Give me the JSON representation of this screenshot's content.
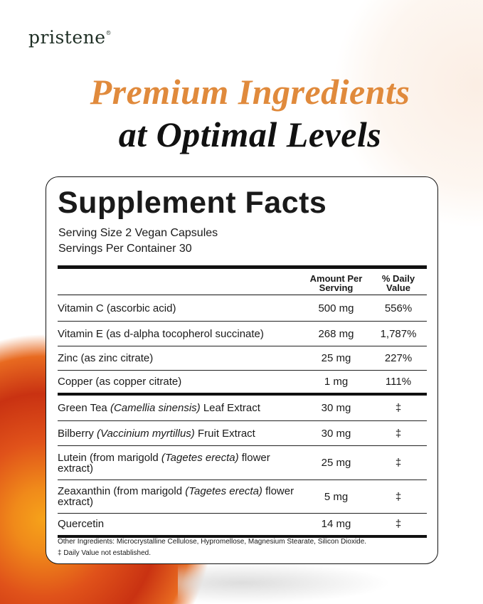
{
  "brand": {
    "name": "pristene",
    "mark": "®"
  },
  "headline": {
    "line1": "Premium Ingredients",
    "line2": "at Optimal Levels",
    "accent_color": "#e08a3c"
  },
  "facts": {
    "title": "Supplement Facts",
    "serving_size": "Serving Size 2 Vegan Capsules",
    "servings_per_container": "Servings Per Container 30",
    "col_amount": "Amount Per Serving",
    "col_dv": "% Daily Value",
    "rows": [
      {
        "name": "Vitamin C (ascorbic acid)",
        "amount": "500 mg",
        "dv": "556%"
      },
      {
        "name": "Vitamin E (as d-alpha tocopherol succinate)",
        "amount": "268 mg",
        "dv": "1,787%"
      },
      {
        "name": "Zinc (as zinc citrate)",
        "amount": "25 mg",
        "dv": "227%"
      },
      {
        "name": "Copper (as copper citrate)",
        "amount": "1 mg",
        "dv": "111%"
      },
      {
        "name_pre": "Green Tea ",
        "name_it": "(Camellia sinensis)",
        "name_post": " Leaf Extract",
        "amount": "30 mg",
        "dv": "‡"
      },
      {
        "name_pre": "Bilberry ",
        "name_it": "(Vaccinium myrtillus)",
        "name_post": " Fruit Extract",
        "amount": "30 mg",
        "dv": "‡"
      },
      {
        "name_pre": "Lutein (from marigold ",
        "name_it": "(Tagetes erecta)",
        "name_post": " flower extract)",
        "amount": "25 mg",
        "dv": "‡"
      },
      {
        "name_pre": "Zeaxanthin (from marigold ",
        "name_it": "(Tagetes erecta)",
        "name_post": " flower extract)",
        "amount": "5 mg",
        "dv": "‡"
      },
      {
        "name": "Quercetin",
        "amount": "14 mg",
        "dv": "‡"
      }
    ],
    "other_ingredients": "Other Ingredients: Microcrystalline Cellulose, Hypromellose, Magnesium Stearate, Silicon Dioxide.",
    "dv_note": "‡ Daily Value not established."
  }
}
